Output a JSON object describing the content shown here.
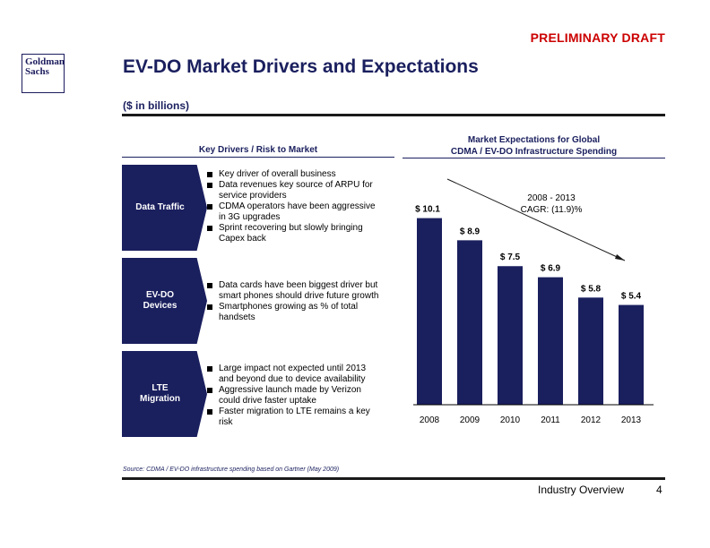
{
  "header": {
    "draft_label": "PRELIMINARY DRAFT",
    "logo_line1": "Goldman",
    "logo_line2": "Sachs",
    "title": "EV-DO Market Drivers and Expectations",
    "subtitle": "($ in billions)"
  },
  "key_drivers": {
    "heading": "Key Drivers / Risk to Market",
    "groups": [
      {
        "label": "Data Traffic",
        "bullets": [
          "Key driver of overall business",
          "Data revenues key source of ARPU for service providers",
          "CDMA operators have been aggressive in 3G upgrades",
          "Sprint recovering but slowly bringing Capex back"
        ]
      },
      {
        "label": "EV-DO Devices",
        "bullets": [
          "Data cards have been biggest driver but smart phones should drive future growth",
          "Smartphones growing as % of total handsets"
        ]
      },
      {
        "label": "LTE Migration",
        "bullets": [
          "Large impact not expected until 2013 and beyond due to device availability",
          "Aggressive launch made by Verizon could drive faster uptake",
          "Faster migration to LTE remains a key risk"
        ]
      }
    ]
  },
  "market_expectations": {
    "heading_line1": "Market Expectations for Global",
    "heading_line2": "CDMA / EV-DO Infrastructure Spending"
  },
  "chart_data": {
    "type": "bar",
    "categories": [
      "2008",
      "2009",
      "2010",
      "2011",
      "2012",
      "2013"
    ],
    "values": [
      10.1,
      8.9,
      7.5,
      6.9,
      5.8,
      5.4
    ],
    "data_labels": [
      "$ 10.1",
      "$ 8.9",
      "$ 7.5",
      "$ 6.9",
      "$ 5.8",
      "$ 5.4"
    ],
    "ylim": [
      0,
      11.5
    ],
    "bar_color": "#1a1f5e",
    "annotation_line1": "2008 - 2013",
    "annotation_line2": "CAGR: (11.9)%",
    "grid": false
  },
  "footer": {
    "source": "Source: CDMA / EV-DO infrastructure spending based on Gartner (May 2009)",
    "section_label": "Industry Overview",
    "page_number": "4"
  }
}
